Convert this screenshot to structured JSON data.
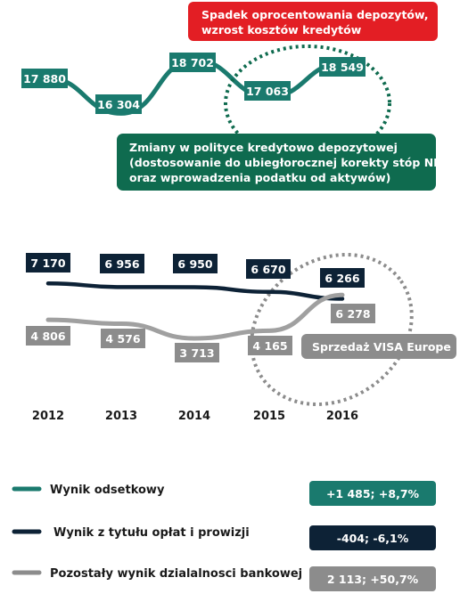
{
  "chart_data": [
    {
      "type": "line",
      "x": [
        "2012",
        "2013",
        "2014",
        "2015",
        "2016"
      ],
      "series": [
        {
          "name": "Wynik odsetkowy",
          "values": [
            17880,
            16304,
            18702,
            17063,
            18549
          ],
          "labels": [
            "17 880",
            "16 304",
            "18 702",
            "17 063",
            "18 549"
          ]
        }
      ],
      "annotations": [
        {
          "text": [
            "Spadek oprocentowania depozytów,",
            "wzrost kosztów kredytów"
          ]
        },
        {
          "text": [
            "Zmiany w polityce kredytowo depozytowej",
            "(dostosowanie do ubiegłorocznej korekty stóp NBP",
            "oraz wprowadzenia podatku od aktywów)"
          ]
        }
      ]
    },
    {
      "type": "line",
      "x": [
        "2012",
        "2013",
        "2014",
        "2015",
        "2016"
      ],
      "series": [
        {
          "name": "Wynik z tytułu opłat i prowizji",
          "values": [
            7170,
            6956,
            6950,
            6670,
            6266
          ],
          "labels": [
            "7 170",
            "6 956",
            "6 950",
            "6 670",
            "6 266"
          ]
        },
        {
          "name": "Pozostały wynik dzialalnosci bankowej",
          "values": [
            4806,
            4576,
            3713,
            4165,
            6278
          ],
          "labels": [
            "4 806",
            "4 576",
            "3 713",
            "4 165",
            "6 278"
          ]
        }
      ],
      "annotations": [
        {
          "text": [
            "Sprzedaż VISA Europe"
          ]
        }
      ]
    }
  ],
  "legend": [
    {
      "label": "Wynik odsetkowy",
      "change": "+1 485;  +8,7%",
      "color": "#1a7a6e"
    },
    {
      "label": "Wynik z tytułu opłat i prowizji",
      "change": "-404;  -6,1%",
      "color": "#0d2236"
    },
    {
      "label": "Pozostały wynik dzialalnosci bankowej",
      "change": "2 113; +50,7%",
      "color": "#8c8c8c"
    }
  ],
  "colors": {
    "teal": "#1a7a6e",
    "navy": "#0d2236",
    "gray": "#8c8c8c",
    "red": "#e31e24",
    "green_box": "#0f6b4f"
  }
}
